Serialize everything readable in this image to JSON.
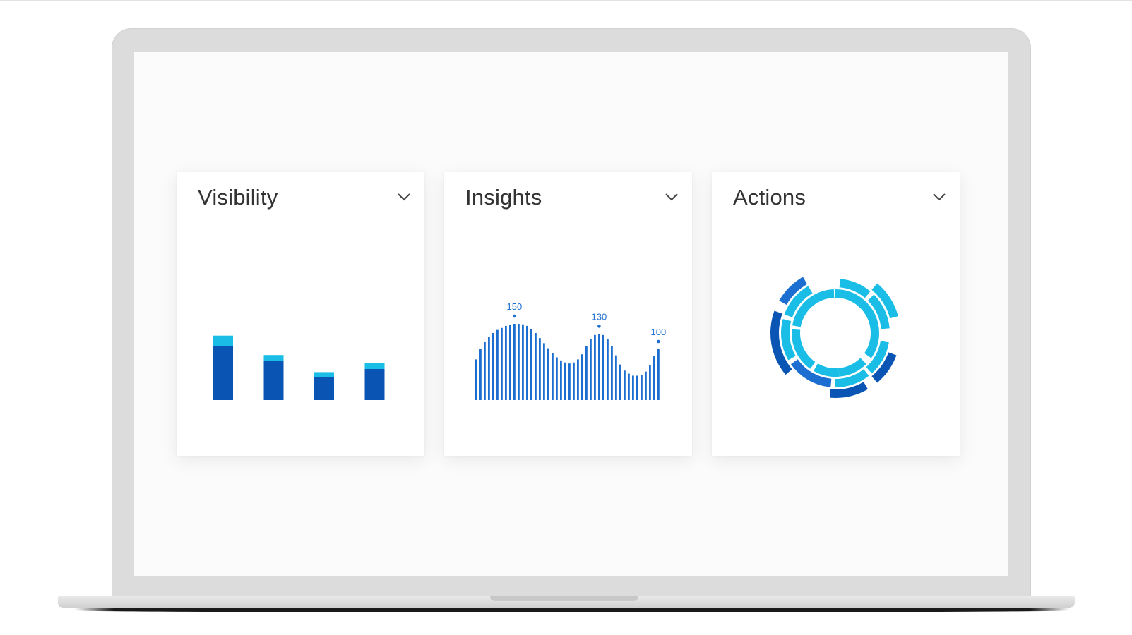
{
  "cards": [
    {
      "title": "Visibility"
    },
    {
      "title": "Insights"
    },
    {
      "title": "Actions"
    }
  ],
  "colors": {
    "dark_blue": "#0a55b4",
    "light_blue": "#19bde6",
    "mid_blue": "#1c6fd0",
    "chevron": "#444444"
  },
  "icons": {
    "dropdown": "chevron-down-icon"
  },
  "chart_data": [
    {
      "type": "bar",
      "stacked": true,
      "categories": [
        "",
        "",
        "",
        ""
      ],
      "series": [
        {
          "values": [
            83,
            58,
            36,
            48
          ]
        },
        {
          "values": [
            70,
            50,
            30,
            40
          ]
        }
      ],
      "title": "Visibility"
    },
    {
      "type": "bar",
      "title": "Insights",
      "annotations": [
        {
          "label": "150",
          "value": 150
        },
        {
          "label": "130",
          "value": 130
        },
        {
          "label": "100",
          "value": 100
        }
      ],
      "values": [
        80,
        100,
        114,
        124,
        132,
        138,
        142,
        146,
        148,
        150,
        150,
        149,
        146,
        140,
        132,
        122,
        112,
        102,
        92,
        84,
        78,
        74,
        72,
        74,
        80,
        90,
        106,
        120,
        128,
        130,
        128,
        120,
        106,
        88,
        70,
        58,
        52,
        48,
        48,
        50,
        56,
        68,
        86,
        100
      ]
    },
    {
      "type": "pie",
      "title": "Actions",
      "rings": [
        {
          "segments": [
            {
              "start": 0,
              "end": 40,
              "color": "#19bde6"
            },
            {
              "start": 40,
              "end": 90,
              "color": "#19bde6"
            },
            {
              "start": 90,
              "end": 125,
              "color": "#19bde6"
            },
            {
              "start": 135,
              "end": 175,
              "color": "#19bde6"
            },
            {
              "start": 175,
              "end": 210,
              "color": "#19bde6"
            },
            {
              "start": 215,
              "end": 275,
              "color": "#19bde6"
            },
            {
              "start": 280,
              "end": 330,
              "color": "#19bde6"
            },
            {
              "start": 330,
              "end": 358,
              "color": "#19bde6"
            }
          ]
        },
        {
          "segments": [
            {
              "start": 5,
              "end": 40,
              "color": "#19bde6"
            },
            {
              "start": 45,
              "end": 85,
              "color": "#19bde6"
            },
            {
              "start": 100,
              "end": 138,
              "color": "#19bde6"
            },
            {
              "start": 142,
              "end": 180,
              "color": "#19bde6"
            },
            {
              "start": 185,
              "end": 235,
              "color": "#1c6fd0"
            },
            {
              "start": 240,
              "end": 285,
              "color": "#19bde6"
            },
            {
              "start": 290,
              "end": 330,
              "color": "#19bde6"
            }
          ]
        },
        {
          "segments": [
            {
              "start": 40,
              "end": 75,
              "color": "#19bde6"
            },
            {
              "start": 110,
              "end": 140,
              "color": "#0a55b4"
            },
            {
              "start": 150,
              "end": 185,
              "color": "#0a55b4"
            },
            {
              "start": 230,
              "end": 290,
              "color": "#0a55b4"
            },
            {
              "start": 300,
              "end": 330,
              "color": "#1c6fd0"
            }
          ]
        }
      ]
    }
  ]
}
